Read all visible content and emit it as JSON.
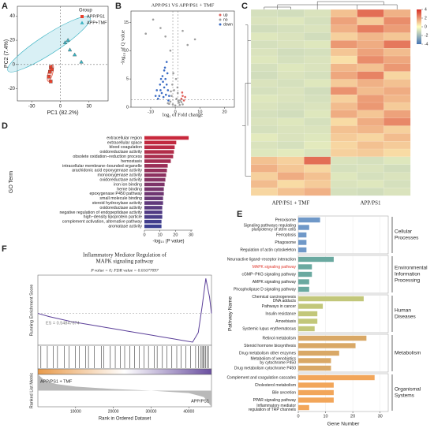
{
  "chart_data": [
    {
      "panel": "A",
      "type": "scatter",
      "xlabel": "PC1 (82.2%)",
      "ylabel": "PC2 (7.4%)",
      "legend_title": "Group",
      "xlim": [
        -45,
        50
      ],
      "ylim": [
        -30,
        48
      ],
      "xticks": [
        -30,
        0,
        30
      ],
      "yticks": [
        -20,
        0,
        20,
        40
      ],
      "series": [
        {
          "name": "APP/PS1",
          "color": "#e8412c",
          "shape": "square",
          "x": [
            -10,
            -11,
            -12,
            -10,
            -9
          ],
          "y": [
            -2,
            -6,
            -10,
            -14,
            -4
          ]
        },
        {
          "name": "APP+TMF",
          "color": "#3bb3c3",
          "shape": "triangle",
          "x": [
            5,
            8,
            15,
            22,
            10
          ],
          "y": [
            18,
            20,
            8,
            2,
            12
          ]
        }
      ]
    },
    {
      "panel": "B",
      "type": "volcano",
      "title": "APP/PS1 VS APP/PS1 + TMF",
      "xlabel": "log₂ of Fold change",
      "ylabel": "-log₁₀ of Q value",
      "xlim": [
        -18,
        24
      ],
      "ylim": [
        0,
        17
      ],
      "xticks": [
        -10,
        0,
        10,
        20
      ],
      "yticks": [
        0,
        5,
        10,
        15
      ],
      "vlines": [
        -1,
        1
      ],
      "hline": 1.3,
      "series": [
        {
          "name": "up",
          "color": "#e0605a",
          "x": [
            2.5,
            3,
            3.5,
            4,
            2.8
          ],
          "y": [
            1.5,
            2,
            1.2,
            1.8,
            2.6
          ]
        },
        {
          "name": "no",
          "color": "#9e9e9e",
          "x": [
            -2,
            -1.5,
            -1,
            -0.5,
            0,
            0.5,
            1,
            1.5,
            2,
            -2.5,
            -1.2,
            0.3,
            1.8,
            -0.8,
            0.9,
            2.5,
            -3,
            3,
            -1.8,
            1.2,
            -9,
            -6,
            -12,
            -4,
            5,
            8,
            -2,
            3
          ],
          "y": [
            1,
            2,
            0.5,
            3,
            0.3,
            1.5,
            2.5,
            0.8,
            1.2,
            0.6,
            4,
            5,
            0.4,
            6,
            3.5,
            0.9,
            0.7,
            0.5,
            2.8,
            1.1,
            15.5,
            14,
            13,
            12.5,
            11,
            12,
            10,
            13.5
          ]
        },
        {
          "name": "down",
          "color": "#3a6bc4",
          "x": [
            -2.5,
            -3,
            -3.5,
            -4,
            -4.5,
            -5,
            -5.5,
            -6,
            -6.5,
            -7,
            -3.2,
            -4.2,
            -5.2,
            -2.8,
            -3.8,
            -4.8,
            -6.2,
            -7.5,
            -8,
            -3.5,
            -4.5,
            -5.8
          ],
          "y": [
            2,
            3,
            4,
            5,
            3.5,
            4.5,
            2.5,
            3,
            2,
            1.5,
            6,
            7,
            5.5,
            1.2,
            2.2,
            1.8,
            4,
            3,
            2,
            8,
            6.5,
            5
          ]
        }
      ]
    },
    {
      "panel": "C",
      "type": "heatmap",
      "groups": [
        "APP/PS1 + TMF",
        "APP/PS1"
      ],
      "colors": [
        "#4575b4",
        "#ffffbf",
        "#d73027"
      ],
      "clim": [
        -4,
        4
      ],
      "cticks": [
        4,
        2,
        0,
        -2,
        -4
      ],
      "values": [
        [
          -0.9,
          -1.0,
          -0.8,
          1.2,
          2.8,
          1.5
        ],
        [
          -0.8,
          -0.7,
          -0.9,
          1.8,
          1.0,
          2.2
        ],
        [
          -1.0,
          -0.9,
          -0.8,
          1.5,
          2.5,
          1.9
        ],
        [
          -0.7,
          -0.8,
          -1.0,
          0.9,
          1.4,
          1.1
        ],
        [
          -0.9,
          -0.8,
          -0.7,
          2.0,
          1.6,
          2.6
        ],
        [
          -0.8,
          -1.0,
          -0.9,
          1.1,
          1.8,
          1.3
        ],
        [
          -0.7,
          -0.9,
          -0.8,
          0.6,
          2.2,
          1.7
        ],
        [
          -0.9,
          -0.7,
          -0.8,
          1.4,
          1.2,
          2.0
        ],
        [
          -1.0,
          -0.8,
          -0.9,
          1.7,
          2.4,
          0.8
        ],
        [
          -0.8,
          -0.9,
          -0.7,
          1.0,
          1.5,
          1.2
        ],
        [
          -0.9,
          -0.8,
          -1.0,
          2.1,
          1.3,
          1.6
        ],
        [
          -0.7,
          -0.8,
          -0.9,
          0.9,
          1.9,
          1.4
        ],
        [
          -0.8,
          -0.9,
          -0.8,
          1.3,
          2.0,
          1.0
        ],
        [
          -0.9,
          -1.0,
          -0.7,
          1.6,
          1.1,
          1.8
        ],
        [
          -0.8,
          -0.7,
          -0.9,
          0.7,
          1.6,
          2.3
        ],
        [
          -0.9,
          -0.8,
          -0.8,
          1.2,
          1.4,
          0.9
        ],
        [
          -0.6,
          -0.8,
          -0.7,
          1.0,
          0.8,
          1.3
        ],
        [
          -0.8,
          -0.9,
          -0.6,
          0.8,
          1.2,
          1.0
        ],
        [
          -0.7,
          -0.6,
          -0.8,
          0.9,
          1.0,
          0.7
        ],
        [
          1.2,
          0.9,
          2.8,
          -0.8,
          -0.9,
          -0.7
        ],
        [
          1.5,
          1.1,
          0.8,
          -0.9,
          -0.8,
          -1.0
        ],
        [
          0.9,
          1.6,
          1.2,
          -0.7,
          -0.9,
          -0.8
        ],
        [
          1.3,
          0.7,
          1.0,
          -0.8,
          -0.7,
          -0.9
        ],
        [
          0.8,
          1.2,
          1.5,
          -0.9,
          -1.0,
          -0.8
        ]
      ]
    },
    {
      "panel": "D",
      "type": "hbar",
      "ylabel": "GO Term",
      "xlabel": "-log₁₀ (P value)",
      "xlim": [
        0,
        31
      ],
      "xticks": [
        0,
        10,
        20,
        30
      ],
      "color_range": [
        "#c8283c",
        "#3b3f91"
      ],
      "categories": [
        "extracellular region",
        "extracellular space",
        "blood coagulation",
        "oxidoreductase activity",
        "obsolete oxidation−reduction process",
        "hemostasis",
        "intracellular membrane−bounded organelle",
        "arachidonic acid epoxygenase activity",
        "monooxygenase activity",
        "oxidoreductase activity",
        "iron ion binding",
        "heme binding",
        "epoxygenase P450 pathway",
        "small molecule binding",
        "steroid hydroxylase activity",
        "oxidoreductase activity",
        "negative regulation of endopeptidase activity",
        "high−density lipoprotein particle",
        "complement activation, alternative pathway",
        "aromatase activity"
      ],
      "values": [
        28.5,
        20.5,
        19.5,
        19,
        18.5,
        17,
        15,
        14.5,
        14,
        13.5,
        13,
        12.5,
        12.5,
        12,
        12,
        11.5,
        11.5,
        11.5,
        11,
        11
      ]
    },
    {
      "panel": "E",
      "type": "grouped_hbar",
      "ylabel": "Pathway Name",
      "xlabel": "Gene Number",
      "xlim": [
        0,
        33
      ],
      "xticks": [
        0,
        10,
        20,
        30
      ],
      "highlight": {
        "group": 1,
        "index": 1,
        "color": "#e03a2f"
      },
      "groups": [
        {
          "name": [
            "Cellular",
            "Processes"
          ],
          "color": "#6f98c8",
          "categories": [
            [
              "Peroxisome"
            ],
            [
              "Signaling pathways regulating",
              "pluripotency of stem cells"
            ],
            [
              "Ferroptosis"
            ],
            [
              "Phagosome"
            ],
            [
              "Regulation of actin cytoskeleton"
            ]
          ],
          "values": [
            8,
            4,
            3,
            3,
            3
          ]
        },
        {
          "name": [
            "Environmental",
            "Information",
            "Processing"
          ],
          "color": "#6aa9a0",
          "categories": [
            [
              "Neuroactive ligand−receptor interaction"
            ],
            [
              "MAPK signaling pathway"
            ],
            [
              "cGMP−PKG signaling pathway"
            ],
            [
              "AMPK signaling pathway"
            ],
            [
              "Phospholipase D signaling pathway"
            ]
          ],
          "values": [
            13,
            5,
            5,
            4,
            4
          ]
        },
        {
          "name": [
            "Human",
            "Diseases"
          ],
          "color": "#c2c77a",
          "categories": [
            [
              "Chemical carcinogenesis",
              "DNA adducts"
            ],
            [
              "Pathways in cancer"
            ],
            [
              "Insulin resistance"
            ],
            [
              "Amoebiasis"
            ],
            [
              "Systemic lupus erythematosus"
            ]
          ],
          "values": [
            24,
            9,
            7,
            7,
            6
          ]
        },
        {
          "name": [
            "Metabolism"
          ],
          "color": "#d9a866",
          "categories": [
            [
              "Retinol metabolism"
            ],
            [
              "Steroid hormone biosynthesis"
            ],
            [
              "Drug metabolism other enzymes"
            ],
            [
              "Metabolism of xenobiotics",
              "by cytochrome P450"
            ],
            [
              "Drug metabolism cytochrome P450"
            ]
          ],
          "values": [
            25,
            21,
            15,
            12,
            12
          ]
        },
        {
          "name": [
            "Organismal",
            "Systems"
          ],
          "color": "#f2a65a",
          "categories": [
            [
              "Complement and coagulation cascades"
            ],
            [
              "Cholesterol metabolism"
            ],
            [
              "Bile secretion"
            ],
            [
              "PPAR signaling pathway"
            ],
            [
              "Inflammatory mediator",
              "regulation of TRP channels"
            ]
          ],
          "values": [
            28,
            13,
            13,
            13,
            4
          ]
        }
      ]
    },
    {
      "panel": "F",
      "type": "gsea",
      "title": [
        "Inflammatory Mediator Regulation of",
        "MAPK signaling pathway"
      ],
      "subtitle": "P value = 0; FDR value = 0.01677097",
      "es_label": "ES = 0.54847674",
      "ylabel": "Running Enrichment Score",
      "ylabel2": "Ranked List Metric",
      "xlabel": "Rank in Ordered Dataset",
      "left_label": "APP/PS1 + TMF",
      "right_label": "APP/PS1",
      "color": "#5b3f99",
      "band_colors": [
        "#e89a4a",
        "#ffffff",
        "#6a4fa0"
      ],
      "xlim": [
        0,
        46000
      ],
      "ylim": [
        -0.5,
        0.6
      ],
      "xticks": [
        10000,
        20000,
        30000,
        40000
      ],
      "x": [
        0,
        3000,
        6000,
        9000,
        12000,
        15000,
        18000,
        21000,
        24000,
        27000,
        30000,
        33000,
        36000,
        39000,
        41000,
        42500,
        43500,
        44500,
        45500,
        46000
      ],
      "y": [
        0,
        -0.05,
        -0.09,
        -0.13,
        -0.16,
        -0.19,
        -0.22,
        -0.25,
        -0.28,
        -0.31,
        -0.34,
        -0.37,
        -0.4,
        -0.43,
        -0.45,
        -0.3,
        0.1,
        0.548,
        0.25,
        0
      ],
      "hits": [
        800,
        2500,
        4100,
        5200,
        7000,
        8300,
        9900,
        11000,
        12600,
        13400,
        15000,
        16800,
        17500,
        19200,
        20500,
        21800,
        23000,
        24400,
        25600,
        26900,
        28100,
        29300,
        30800,
        31600,
        33000,
        34200,
        35500,
        36800,
        38000,
        39200,
        40500,
        41800,
        42600,
        43100,
        43500,
        43800,
        44100,
        44400,
        44800,
        45200
      ],
      "metric_x": [
        0,
        2000,
        5000,
        10000,
        20000,
        30000,
        40000,
        44000,
        46000
      ],
      "metric_y": [
        1,
        0.6,
        0.4,
        0.25,
        0.1,
        0,
        -0.15,
        -0.4,
        -1
      ],
      "metric_lim": [
        -1,
        1
      ]
    }
  ]
}
